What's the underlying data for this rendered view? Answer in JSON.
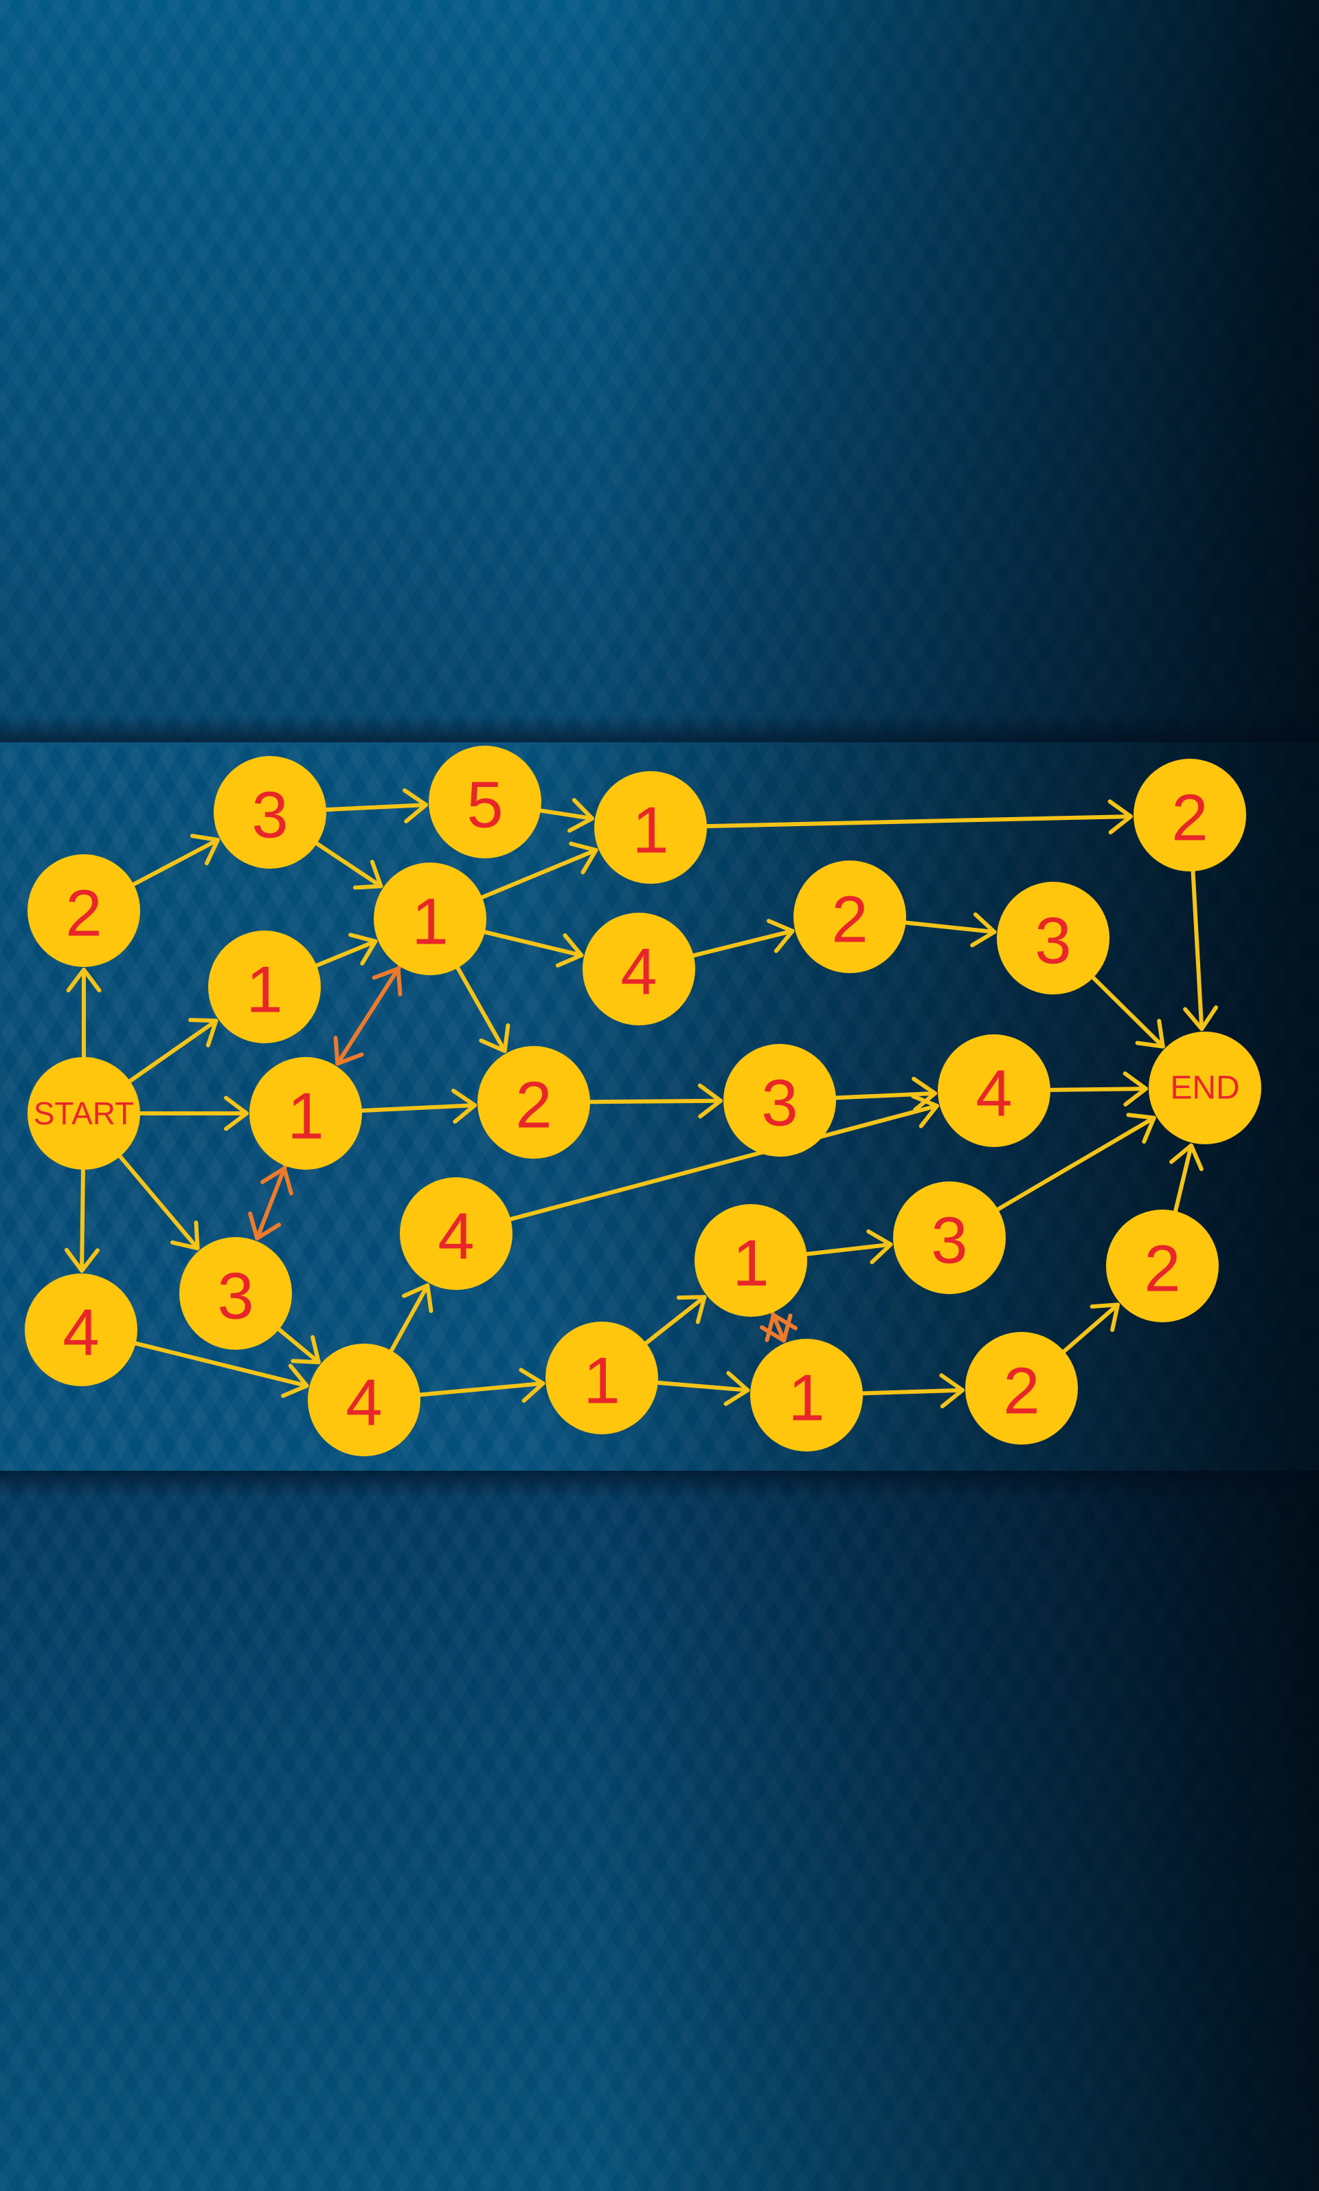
{
  "colors": {
    "node_fill": "#ffc60d",
    "node_text": "#e8262a",
    "edge": "#f5c418",
    "edge_bidirectional": "#ee7a2c"
  },
  "nodes": [
    {
      "id": "start",
      "label": "START"
    },
    {
      "id": "end",
      "label": "END"
    },
    {
      "id": "n_2_left",
      "label": "2"
    },
    {
      "id": "n_3_top",
      "label": "3"
    },
    {
      "id": "n_5_top",
      "label": "5"
    },
    {
      "id": "n_1_top",
      "label": "1"
    },
    {
      "id": "n_2_topright",
      "label": "2"
    },
    {
      "id": "n_1_upper",
      "label": "1"
    },
    {
      "id": "n_1_left",
      "label": "1"
    },
    {
      "id": "n_4_mid",
      "label": "4"
    },
    {
      "id": "n_2_mid",
      "label": "2"
    },
    {
      "id": "n_3_mid",
      "label": "3"
    },
    {
      "id": "n_1_center",
      "label": "1"
    },
    {
      "id": "n_2_center",
      "label": "2"
    },
    {
      "id": "n_3_center",
      "label": "3"
    },
    {
      "id": "n_4_center",
      "label": "4"
    },
    {
      "id": "n_4_left",
      "label": "4"
    },
    {
      "id": "n_3_lowleft",
      "label": "3"
    },
    {
      "id": "n_4_lower",
      "label": "4"
    },
    {
      "id": "n_4_bottom",
      "label": "4"
    },
    {
      "id": "n_1_bottom",
      "label": "1"
    },
    {
      "id": "n_1_lowmid",
      "label": "1"
    },
    {
      "id": "n_1_lowright",
      "label": "1"
    },
    {
      "id": "n_3_lowright",
      "label": "3"
    },
    {
      "id": "n_2_bottom",
      "label": "2"
    },
    {
      "id": "n_2_lowright",
      "label": "2"
    }
  ],
  "edges": [
    {
      "from": "start",
      "to": "n_2_left"
    },
    {
      "from": "start",
      "to": "n_1_left"
    },
    {
      "from": "start",
      "to": "n_1_center"
    },
    {
      "from": "start",
      "to": "n_3_lowleft"
    },
    {
      "from": "start",
      "to": "n_4_left"
    },
    {
      "from": "n_2_left",
      "to": "n_3_top"
    },
    {
      "from": "n_3_top",
      "to": "n_5_top"
    },
    {
      "from": "n_3_top",
      "to": "n_1_upper"
    },
    {
      "from": "n_5_top",
      "to": "n_1_top"
    },
    {
      "from": "n_1_top",
      "to": "n_2_topright"
    },
    {
      "from": "n_1_left",
      "to": "n_1_upper"
    },
    {
      "from": "n_1_upper",
      "to": "n_1_top"
    },
    {
      "from": "n_1_upper",
      "to": "n_4_mid"
    },
    {
      "from": "n_1_upper",
      "to": "n_2_center"
    },
    {
      "from": "n_4_mid",
      "to": "n_2_mid"
    },
    {
      "from": "n_2_mid",
      "to": "n_3_mid"
    },
    {
      "from": "n_3_mid",
      "to": "end"
    },
    {
      "from": "n_2_topright",
      "to": "end"
    },
    {
      "from": "n_1_center",
      "to": "n_2_center"
    },
    {
      "from": "n_2_center",
      "to": "n_3_center"
    },
    {
      "from": "n_3_center",
      "to": "n_4_center"
    },
    {
      "from": "n_4_center",
      "to": "end"
    },
    {
      "from": "n_4_lower",
      "to": "n_4_center"
    },
    {
      "from": "n_3_lowleft",
      "to": "n_4_bottom"
    },
    {
      "from": "n_4_left",
      "to": "n_4_bottom"
    },
    {
      "from": "n_4_bottom",
      "to": "n_4_lower"
    },
    {
      "from": "n_4_bottom",
      "to": "n_1_bottom"
    },
    {
      "from": "n_1_bottom",
      "to": "n_1_lowmid"
    },
    {
      "from": "n_1_bottom",
      "to": "n_1_lowright"
    },
    {
      "from": "n_1_lowmid",
      "to": "n_3_lowright"
    },
    {
      "from": "n_3_lowright",
      "to": "end"
    },
    {
      "from": "n_1_lowright",
      "to": "n_2_bottom"
    },
    {
      "from": "n_2_bottom",
      "to": "n_2_lowright"
    },
    {
      "from": "n_2_lowright",
      "to": "end"
    },
    {
      "from": "n_1_upper",
      "to": "n_1_center",
      "bidirectional": true
    },
    {
      "from": "n_1_center",
      "to": "n_3_lowleft",
      "bidirectional": true
    },
    {
      "from": "n_1_lowmid",
      "to": "n_1_lowright",
      "bidirectional": true
    }
  ]
}
